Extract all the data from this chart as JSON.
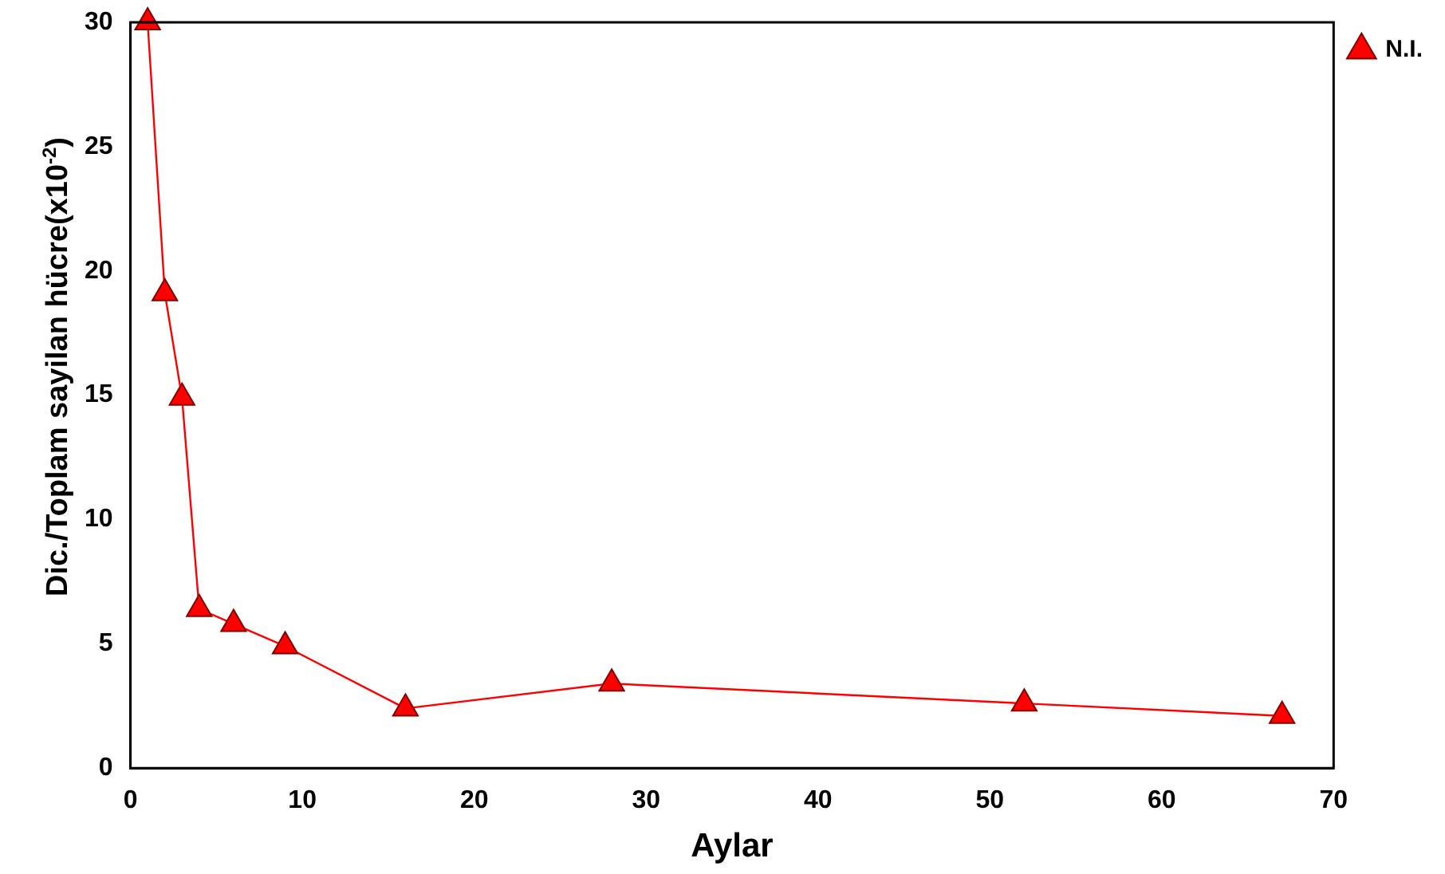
{
  "chart_data": {
    "type": "line",
    "xlabel": "Aylar",
    "ylabel": "Dic./Toplam sayilan hücre(x10$^{-2}$)",
    "x": [
      1,
      2,
      3,
      4,
      6,
      9,
      16,
      28,
      52,
      67
    ],
    "series": [
      {
        "name": "N.I.",
        "color": "#ff0000",
        "values": [
          30,
          19.1,
          14.9,
          6.4,
          5.8,
          4.9,
          2.4,
          3.4,
          2.6,
          2.1
        ]
      }
    ],
    "xlim": [
      0,
      70
    ],
    "xticks": [
      0,
      10,
      20,
      30,
      40,
      50,
      60,
      70
    ],
    "ylim": [
      0,
      30
    ],
    "yticks": [
      0,
      5,
      10,
      15,
      20,
      25,
      30
    ],
    "grid": false,
    "legend": "top right",
    "marker": "triangle",
    "line_style": "solid"
  }
}
